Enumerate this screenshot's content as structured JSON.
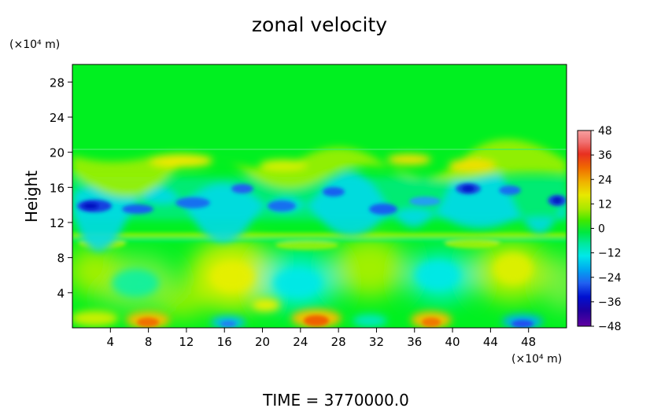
{
  "chart_data": {
    "type": "heatmap",
    "title": "zonal velocity",
    "ylabel": "Height",
    "x_unit": "(×10⁴ m)",
    "y_unit": "(×10⁴ m)",
    "footer": "TIME = 3770000.0",
    "xlim": [
      0,
      52
    ],
    "ylim": [
      0,
      30
    ],
    "x_ticks": [
      4,
      8,
      12,
      16,
      20,
      24,
      28,
      32,
      36,
      40,
      44,
      48
    ],
    "y_ticks": [
      4,
      8,
      12,
      16,
      20,
      24,
      28
    ],
    "colorbar": {
      "range": [
        -48,
        48
      ],
      "tick_values": [
        48,
        36,
        24,
        12,
        0,
        -12,
        -24,
        -36,
        -48
      ],
      "tick_labels": [
        "48",
        "36",
        "24",
        "12",
        "0",
        "−12",
        "−24",
        "−36",
        "−48"
      ]
    },
    "colors": {
      "background_field": "#00f020",
      "frame": "#000000"
    }
  }
}
